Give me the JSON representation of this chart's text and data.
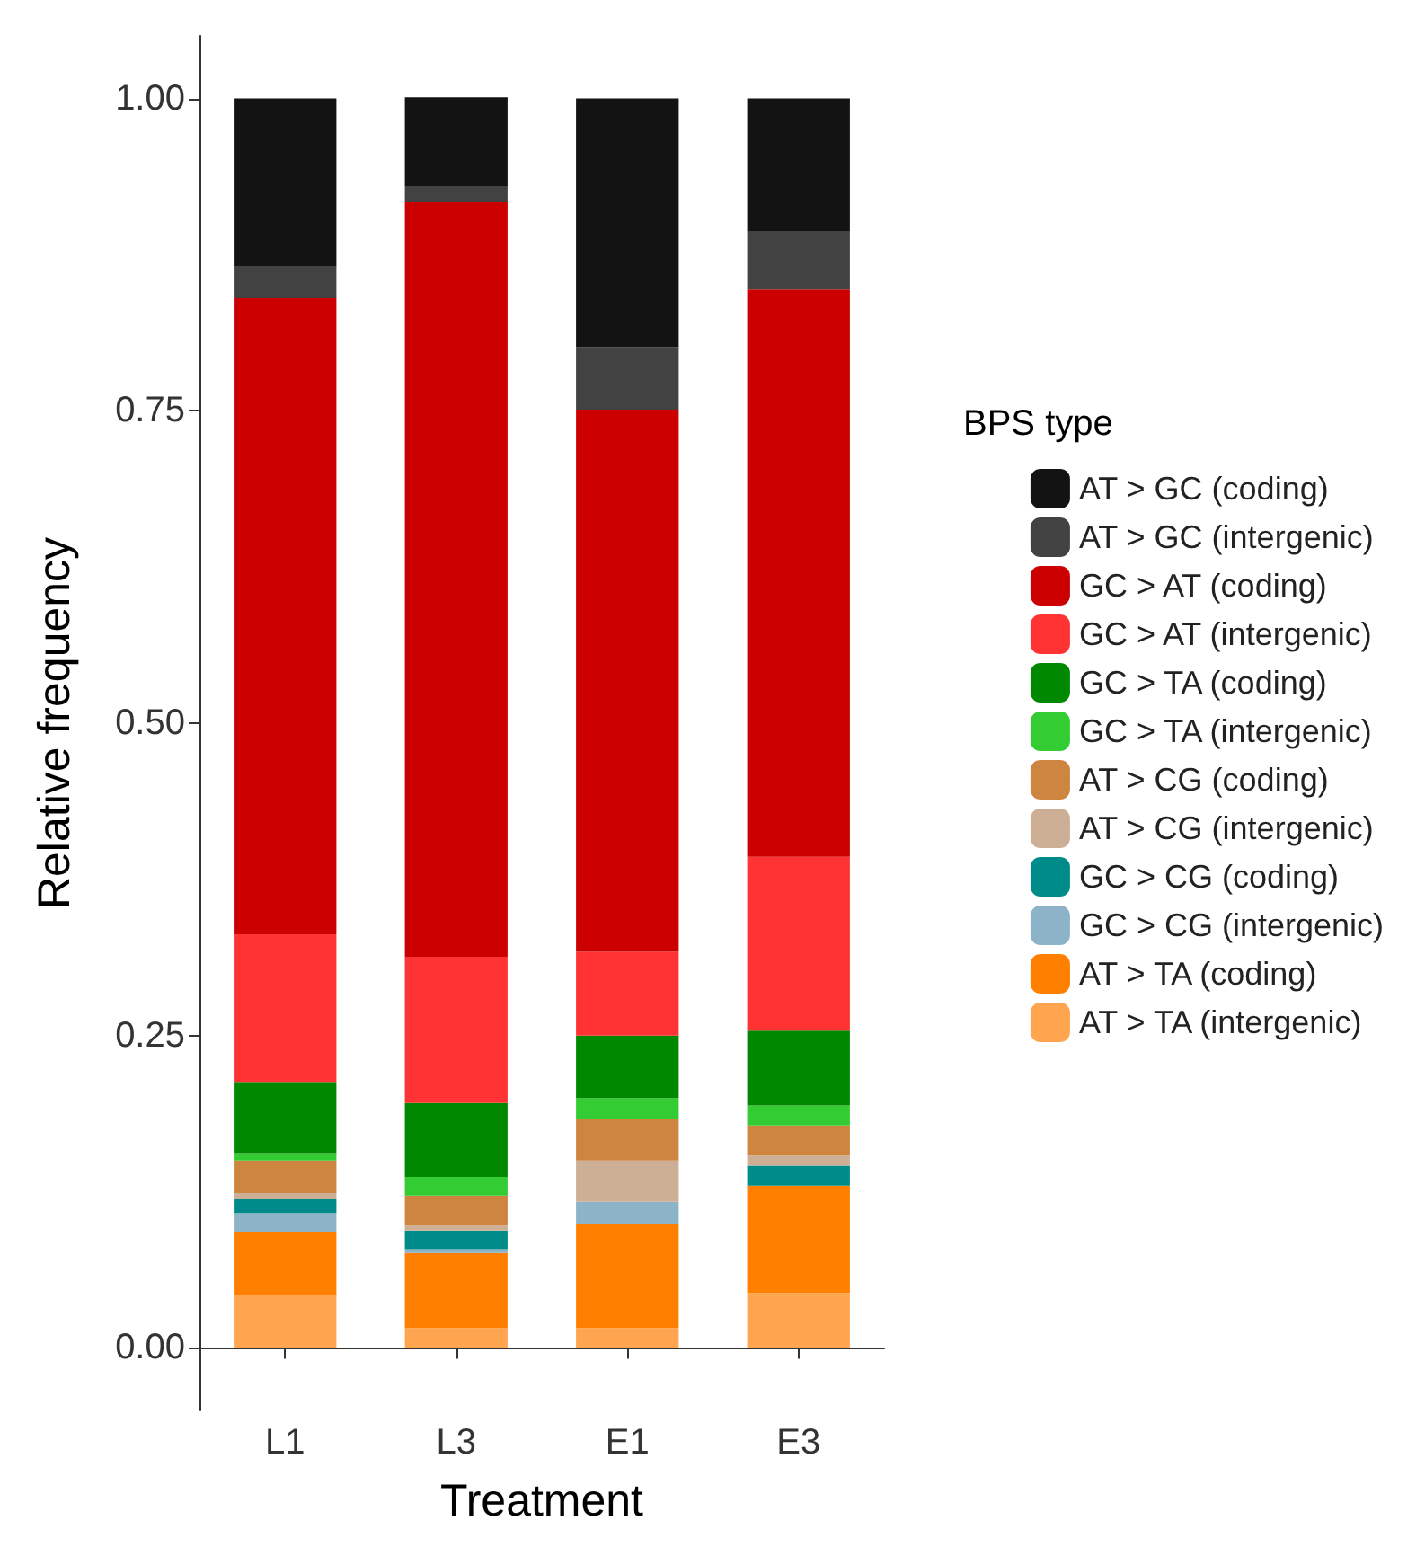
{
  "chart_data": {
    "type": "bar",
    "stacked": true,
    "xlabel": "Treatment",
    "ylabel": "Relative frequency",
    "legend_title": "BPS type",
    "legend": "right",
    "grid": false,
    "categories": [
      "L1",
      "L3",
      "E1",
      "E3"
    ],
    "ylim": [
      -0.05,
      1.05
    ],
    "yticks": [
      {
        "value": 0,
        "label": "0.00"
      },
      {
        "value": 0.25,
        "label": "0.25"
      },
      {
        "value": 0.5,
        "label": "0.50"
      },
      {
        "value": 0.75,
        "label": "0.75"
      },
      {
        "value": 1,
        "label": "1.00"
      }
    ],
    "series": [
      {
        "name": "AT > TA (intergenic)",
        "color": "#ffa54f",
        "values": [
          0.042,
          0.016,
          0.016,
          0.044
        ]
      },
      {
        "name": "AT > TA (coding)",
        "color": "#ff8000",
        "values": [
          0.051,
          0.06,
          0.083,
          0.086
        ]
      },
      {
        "name": "GC > CG (intergenic)",
        "color": "#8db3c9",
        "values": [
          0.015,
          0.003,
          0.018,
          0
        ]
      },
      {
        "name": "GC > CG (coding)",
        "color": "#008b8b",
        "values": [
          0.011,
          0.015,
          0,
          0.016
        ]
      },
      {
        "name": "AT > CG (intergenic)",
        "color": "#cdaf95",
        "values": [
          0.005,
          0.004,
          0.033,
          0.008
        ]
      },
      {
        "name": "AT > CG (coding)",
        "color": "#cd853f",
        "values": [
          0.026,
          0.024,
          0.033,
          0.024
        ]
      },
      {
        "name": "GC > TA (intergenic)",
        "color": "#33cc33",
        "values": [
          0.006,
          0.015,
          0.017,
          0.016
        ]
      },
      {
        "name": "GC > TA (coding)",
        "color": "#008800",
        "values": [
          0.057,
          0.059,
          0.05,
          0.06
        ]
      },
      {
        "name": "GC > AT (intergenic)",
        "color": "#ff3333",
        "values": [
          0.118,
          0.117,
          0.067,
          0.139
        ]
      },
      {
        "name": "GC > AT (coding)",
        "color": "#cc0000",
        "values": [
          0.509,
          0.604,
          0.434,
          0.454
        ]
      },
      {
        "name": "AT > GC (intergenic)",
        "color": "#424242",
        "values": [
          0.026,
          0.013,
          0.05,
          0.047
        ]
      },
      {
        "name": "AT > GC (coding)",
        "color": "#131313",
        "values": [
          0.134,
          0.071,
          0.199,
          0.106
        ]
      }
    ]
  }
}
